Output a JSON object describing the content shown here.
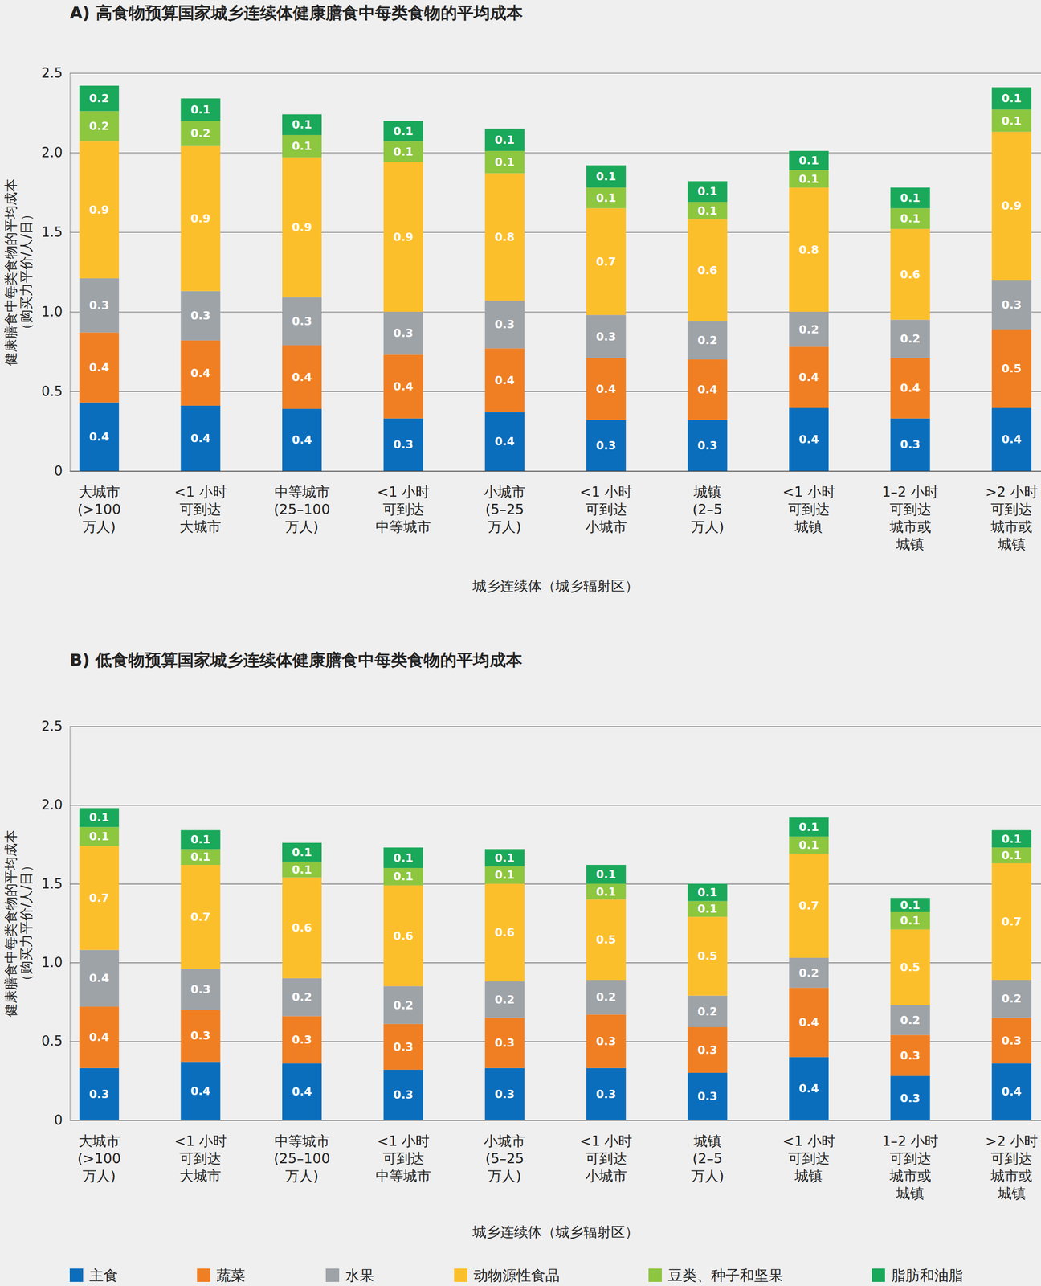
{
  "chart_data": [
    {
      "type": "bar",
      "title": "A) 高食物预算国家城乡连续体健康膳食中每类食物的平均成本",
      "x_label": "城乡连续体（城乡辐射区）",
      "y_label": "健康膳食中每类食物的平均成本\n（购买力平价/人/日）",
      "categories": [
        "大城市\n(>100\n万人)",
        "<1 小时\n可到达\n大城市",
        "中等城市\n(25–100\n万人)",
        "<1 小时\n可到达\n中等城市",
        "小城市\n(5–25\n万人)",
        "<1 小时\n可到达\n小城市",
        "城镇\n(2–5\n万人)",
        "<1 小时\n可到达\n城镇",
        "1–2 小时\n可到达\n城市或\n城镇",
        ">2 小时\n可到达\n城市或\n城镇"
      ],
      "series": [
        {
          "name": "主食",
          "color": "#0a6ebd",
          "values": [
            0.43,
            0.41,
            0.39,
            0.33,
            0.37,
            0.32,
            0.32,
            0.4,
            0.33,
            0.4
          ],
          "value_labels": [
            "0.4",
            "0.4",
            "0.4",
            "0.3",
            "0.4",
            "0.3",
            "0.3",
            "0.4",
            "0.3",
            "0.4"
          ]
        },
        {
          "name": "蔬菜",
          "color": "#f07f23",
          "values": [
            0.44,
            0.41,
            0.4,
            0.4,
            0.4,
            0.39,
            0.38,
            0.38,
            0.38,
            0.49
          ],
          "value_labels": [
            "0.4",
            "0.4",
            "0.4",
            "0.4",
            "0.4",
            "0.4",
            "0.4",
            "0.4",
            "0.4",
            "0.5"
          ]
        },
        {
          "name": "水果",
          "color": "#9ea3a8",
          "values": [
            0.34,
            0.31,
            0.3,
            0.27,
            0.3,
            0.27,
            0.24,
            0.22,
            0.24,
            0.31
          ],
          "value_labels": [
            "0.3",
            "0.3",
            "0.3",
            "0.3",
            "0.3",
            "0.3",
            "0.2",
            "0.2",
            "0.2",
            "0.3"
          ]
        },
        {
          "name": "动物源性食品",
          "color": "#fcbf2c",
          "values": [
            0.86,
            0.91,
            0.88,
            0.94,
            0.8,
            0.67,
            0.64,
            0.78,
            0.57,
            0.93
          ],
          "value_labels": [
            "0.9",
            "0.9",
            "0.9",
            "0.9",
            "0.8",
            "0.7",
            "0.6",
            "0.8",
            "0.6",
            "0.9"
          ]
        },
        {
          "name": "豆类、种子和坚果",
          "color": "#8dc63f",
          "values": [
            0.19,
            0.16,
            0.14,
            0.13,
            0.14,
            0.13,
            0.11,
            0.11,
            0.13,
            0.14
          ],
          "value_labels": [
            "0.2",
            "0.2",
            "0.1",
            "0.1",
            "0.1",
            "0.1",
            "0.1",
            "0.1",
            "0.1",
            "0.1"
          ]
        },
        {
          "name": "脂肪和油脂",
          "color": "#1aa85a",
          "values": [
            0.16,
            0.14,
            0.13,
            0.13,
            0.14,
            0.14,
            0.13,
            0.12,
            0.13,
            0.14
          ],
          "value_labels": [
            "0.2",
            "0.1",
            "0.1",
            "0.1",
            "0.1",
            "0.1",
            "0.1",
            "0.1",
            "0.1",
            "0.1"
          ]
        }
      ],
      "ylim": [
        0,
        2.5
      ],
      "yticks": [
        0,
        0.5,
        {
          "value": 1,
          "label": "1.0"
        },
        1.5,
        {
          "value": 2,
          "label": "2.0"
        },
        2.5
      ],
      "grid": true,
      "stacked": true,
      "data_labels": true
    },
    {
      "type": "bar",
      "title": "B) 低食物预算国家城乡连续体健康膳食中每类食物的平均成本",
      "x_label": "城乡连续体（城乡辐射区）",
      "y_label": "健康膳食中每类食物的平均成本\n（购买力平价/人/日）",
      "categories": [
        "大城市\n(>100\n万人)",
        "<1 小时\n可到达\n大城市",
        "中等城市\n(25–100\n万人)",
        "<1 小时\n可到达\n中等城市",
        "小城市\n(5–25\n万人)",
        "<1 小时\n可到达\n小城市",
        "城镇\n(2–5\n万人)",
        "<1 小时\n可到达\n城镇",
        "1–2 小时\n可到达\n城市或\n城镇",
        ">2 小时\n可到达\n城市或\n城镇"
      ],
      "series": [
        {
          "name": "主食",
          "color": "#0a6ebd",
          "values": [
            0.33,
            0.37,
            0.36,
            0.32,
            0.33,
            0.33,
            0.3,
            0.4,
            0.28,
            0.36
          ],
          "value_labels": [
            "0.3",
            "0.4",
            "0.4",
            "0.3",
            "0.3",
            "0.3",
            "0.3",
            "0.4",
            "0.3",
            "0.4"
          ]
        },
        {
          "name": "蔬菜",
          "color": "#f07f23",
          "values": [
            0.39,
            0.33,
            0.3,
            0.29,
            0.32,
            0.34,
            0.29,
            0.44,
            0.26,
            0.29
          ],
          "value_labels": [
            "0.4",
            "0.3",
            "0.3",
            "0.3",
            "0.3",
            "0.3",
            "0.3",
            "0.4",
            "0.3",
            "0.3"
          ]
        },
        {
          "name": "水果",
          "color": "#9ea3a8",
          "values": [
            0.36,
            0.26,
            0.24,
            0.24,
            0.23,
            0.22,
            0.2,
            0.19,
            0.19,
            0.24
          ],
          "value_labels": [
            "0.4",
            "0.3",
            "0.2",
            "0.2",
            "0.2",
            "0.2",
            "0.2",
            "0.2",
            "0.2",
            "0.2"
          ]
        },
        {
          "name": "动物源性食品",
          "color": "#fcbf2c",
          "values": [
            0.66,
            0.66,
            0.64,
            0.64,
            0.62,
            0.51,
            0.5,
            0.66,
            0.48,
            0.74
          ],
          "value_labels": [
            "0.7",
            "0.7",
            "0.6",
            "0.6",
            "0.6",
            "0.5",
            "0.5",
            "0.7",
            "0.5",
            "0.7"
          ]
        },
        {
          "name": "豆类、种子和坚果",
          "color": "#8dc63f",
          "values": [
            0.12,
            0.1,
            0.1,
            0.11,
            0.11,
            0.1,
            0.1,
            0.11,
            0.11,
            0.1
          ],
          "value_labels": [
            "0.1",
            "0.1",
            "0.1",
            "0.1",
            "0.1",
            "0.1",
            "0.1",
            "0.1",
            "0.1",
            "0.1"
          ]
        },
        {
          "name": "脂肪和油脂",
          "color": "#1aa85a",
          "values": [
            0.12,
            0.12,
            0.12,
            0.13,
            0.11,
            0.12,
            0.11,
            0.12,
            0.09,
            0.11
          ],
          "value_labels": [
            "0.1",
            "0.1",
            "0.1",
            "0.1",
            "0.1",
            "0.1",
            "0.1",
            "0.1",
            "0.1",
            "0.1"
          ]
        }
      ],
      "ylim": [
        0,
        2.5
      ],
      "yticks": [
        0,
        0.5,
        {
          "value": 1,
          "label": "1.0"
        },
        1.5,
        {
          "value": 2,
          "label": "2.0"
        },
        2.5
      ],
      "grid": true,
      "stacked": true,
      "data_labels": true,
      "legend": "bottom"
    }
  ]
}
